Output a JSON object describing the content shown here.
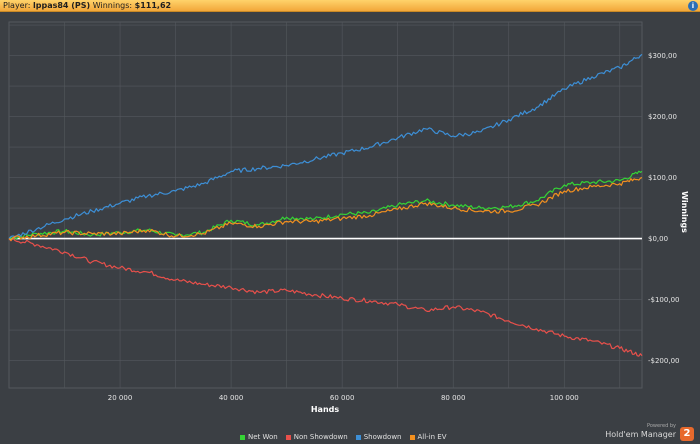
{
  "header": {
    "player_label": "Player:",
    "player_name": "lppas84 (PS)",
    "winnings_label": "Winnings:",
    "winnings_value": "$111,62"
  },
  "help_icon": "info-icon",
  "branding": {
    "powered_by": "Powered by",
    "product_name": "Hold'em Manager",
    "logo_text": "2"
  },
  "colors": {
    "background": "#3b3f44",
    "grid": "#54585e",
    "net_won": "#35d435",
    "non_showdown": "#e8504b",
    "showdown": "#3d8fd6",
    "all_in_ev": "#f3901f"
  },
  "chart_data": {
    "type": "line",
    "xlabel": "Hands",
    "ylabel": "Winnings",
    "xlim": [
      0,
      114000
    ],
    "ylim": [
      -245,
      355
    ],
    "x_ticks": [
      20000,
      40000,
      60000,
      80000,
      100000
    ],
    "x_tick_labels": [
      "20 000",
      "40 000",
      "60 000",
      "80 000",
      "100 000"
    ],
    "y_ticks": [
      -200,
      -100,
      0,
      100,
      200,
      300
    ],
    "y_tick_labels": [
      "-$200,00",
      "-$100,00",
      "$0,00",
      "$100,00",
      "$200,00",
      "$300,00"
    ],
    "grid": true,
    "legend_position": "bottom",
    "x": [
      0,
      5000,
      10000,
      15000,
      20000,
      25000,
      30000,
      35000,
      40000,
      45000,
      50000,
      55000,
      60000,
      65000,
      70000,
      75000,
      80000,
      85000,
      90000,
      95000,
      100000,
      105000,
      110000,
      114000
    ],
    "series": [
      {
        "name": "Net Won",
        "color_key": "net_won",
        "values": [
          0,
          8,
          12,
          6,
          10,
          14,
          5,
          10,
          30,
          22,
          35,
          32,
          40,
          42,
          55,
          62,
          55,
          50,
          52,
          62,
          88,
          92,
          95,
          110
        ]
      },
      {
        "name": "Non Showdown",
        "color_key": "non_showdown",
        "values": [
          0,
          -10,
          -22,
          -38,
          -48,
          -55,
          -68,
          -75,
          -80,
          -88,
          -85,
          -92,
          -98,
          -102,
          -108,
          -118,
          -112,
          -120,
          -135,
          -148,
          -160,
          -168,
          -180,
          -192
        ]
      },
      {
        "name": "Showdown",
        "color_key": "showdown",
        "values": [
          0,
          16,
          32,
          45,
          58,
          70,
          78,
          90,
          110,
          115,
          120,
          130,
          140,
          150,
          165,
          180,
          168,
          175,
          195,
          215,
          245,
          265,
          280,
          302
        ]
      },
      {
        "name": "All-in EV",
        "color_key": "all_in_ev",
        "values": [
          0,
          5,
          10,
          8,
          8,
          14,
          4,
          8,
          25,
          20,
          28,
          28,
          33,
          38,
          48,
          58,
          50,
          45,
          45,
          55,
          78,
          85,
          90,
          100
        ]
      }
    ]
  }
}
